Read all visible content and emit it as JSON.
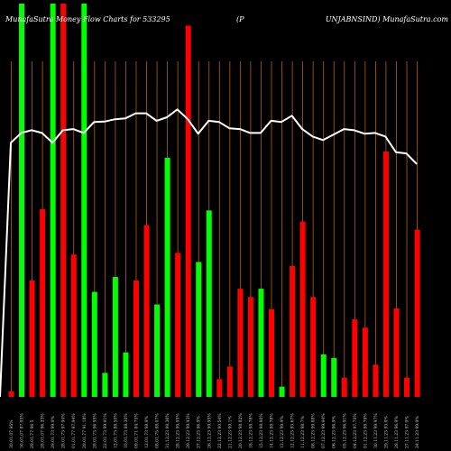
{
  "header": {
    "left": "MunafaSutra  Money Flow  Charts for 533295",
    "middle": "(P",
    "right": "UNJABNSIND) MunafaSutra.com"
  },
  "chart_data": {
    "type": "bar",
    "title": "MunafaSutra  Money Flow  Charts for 533295",
    "background": "#000000",
    "colors": {
      "up": "#00ff00",
      "down": "#ff0000",
      "grid": "#b8600a",
      "line": "#ffffff"
    },
    "grid": true,
    "ylim": [
      0,
      100
    ],
    "bars": [
      {
        "color": "down",
        "value": 1.4
      },
      {
        "color": "up",
        "value": 100
      },
      {
        "color": "down",
        "value": 29.6
      },
      {
        "color": "down",
        "value": 47.7
      },
      {
        "color": "up",
        "value": 100
      },
      {
        "color": "down",
        "value": 100
      },
      {
        "color": "down",
        "value": 36.2
      },
      {
        "color": "up",
        "value": 100
      },
      {
        "color": "up",
        "value": 26.7
      },
      {
        "color": "up",
        "value": 6.1
      },
      {
        "color": "up",
        "value": 30.5
      },
      {
        "color": "up",
        "value": 11.3
      },
      {
        "color": "down",
        "value": 29.6
      },
      {
        "color": "down",
        "value": 43.7
      },
      {
        "color": "up",
        "value": 23.5
      },
      {
        "color": "up",
        "value": 60.8
      },
      {
        "color": "down",
        "value": 36.6
      },
      {
        "color": "down",
        "value": 94.4
      },
      {
        "color": "up",
        "value": 34.3
      },
      {
        "color": "up",
        "value": 47.4
      },
      {
        "color": "down",
        "value": 4.5
      },
      {
        "color": "down",
        "value": 7.7
      },
      {
        "color": "down",
        "value": 27.5
      },
      {
        "color": "down",
        "value": 25.4
      },
      {
        "color": "up",
        "value": 27.5
      },
      {
        "color": "down",
        "value": 22.3
      },
      {
        "color": "up",
        "value": 2.6
      },
      {
        "color": "down",
        "value": 33.3
      },
      {
        "color": "down",
        "value": 44.6
      },
      {
        "color": "down",
        "value": 25.4
      },
      {
        "color": "up",
        "value": 10.8
      },
      {
        "color": "up",
        "value": 9.9
      },
      {
        "color": "down",
        "value": 4.9
      },
      {
        "color": "down",
        "value": 19.7
      },
      {
        "color": "down",
        "value": 17.6
      },
      {
        "color": "down",
        "value": 8.2
      },
      {
        "color": "down",
        "value": 62.4
      },
      {
        "color": "down",
        "value": 22.5
      },
      {
        "color": "down",
        "value": 4.9
      },
      {
        "color": "down",
        "value": 42.5
      }
    ],
    "line": [
      64.6,
      67.1,
      67.8,
      67.1,
      64.6,
      67.8,
      68.1,
      67.1,
      69.9,
      70.0,
      70.6,
      70.8,
      72.1,
      72.1,
      70.2,
      71.1,
      73.1,
      70.6,
      66.9,
      70.2,
      69.9,
      68.3,
      68.1,
      67.1,
      67.1,
      70.2,
      69.9,
      71.5,
      68.1,
      66.2,
      65.3,
      66.7,
      68.1,
      67.8,
      66.9,
      67.1,
      66.2,
      62.2,
      61.9,
      59.2
    ],
    "x_tick_labels": [
      "30.01.07 95%",
      "30.01.07 87.95%",
      "29.01.77 96 5",
      "28.01.07 96.23%",
      "29.01.73 99.9%",
      "28.01.73 97 94%",
      "01.01.77 97.94%",
      "28.01.77 91.18%",
      "28.01.73 96 95%",
      "22.01.73 99.91%",
      "12.01.73 88.50%",
      "10.01.73 88.30%",
      "09.01.71 84.75%",
      "12.01.73 98.9%",
      "08.01.75 98.07%",
      "31.12.23 99.36%",
      "28.12.23 99.95%",
      "29.12.23 99.93%",
      "27.12.23 96.9%",
      "26.12.23 99.95%",
      "22.12.23 90.54%",
      "21.12.23 99.1%",
      "20.12.23 98.82%",
      "18.12.23 98.78%",
      "15.12.23 98.90%",
      "14.12.23 98.78%",
      "13.12.23 99.9%",
      "12.12.23 93.67%",
      "11.12.23 98.7%",
      "08.12.23 99.88%",
      "07.12.23 99.94%",
      "06.12.23 96.9%",
      "05.12.23 96.91%",
      "04.12.23 97.70%",
      "01.12.23 98.79%",
      "30.11.23 99.97%",
      "29.11.23 93.8%",
      "28.11.23 96.9%",
      "27.11.23 97.9%",
      "24.11.23 99.9%"
    ],
    "x_tick_marks": [
      "",
      "",
      "",
      "",
      "",
      "",
      "",
      "",
      "",
      "",
      "",
      "",
      "",
      "",
      "",
      "",
      "",
      "",
      "",
      "",
      "",
      "",
      "",
      "",
      "",
      "",
      "",
      "",
      "",
      "",
      "",
      "",
      "",
      "",
      "",
      "",
      "",
      "",
      "",
      ""
    ]
  }
}
